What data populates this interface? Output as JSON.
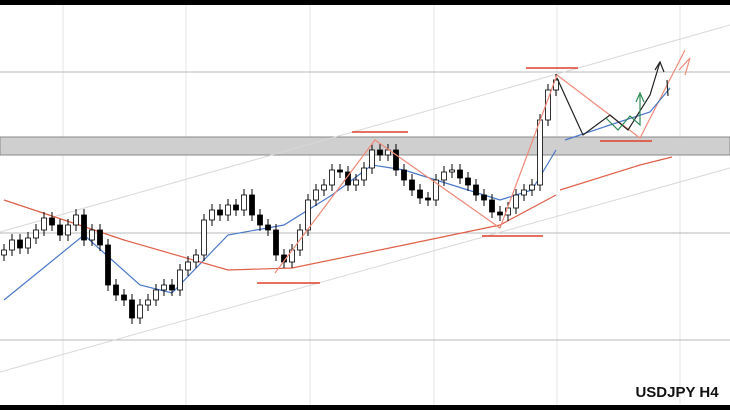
{
  "chart_data": {
    "type": "candlestick",
    "title": "USDJPY H4",
    "ylim": [
      0,
      410
    ],
    "up_color": "#ffffff",
    "down_color": "#000000",
    "open": [
      155,
      160,
      170,
      162,
      172,
      180,
      192,
      185,
      175,
      185,
      195,
      170,
      180,
      165,
      125,
      115,
      110,
      92,
      105,
      110,
      120,
      125,
      120,
      140,
      148,
      155,
      190,
      200,
      195,
      205,
      200,
      215,
      195,
      185,
      180,
      155,
      148,
      160,
      180,
      210,
      220,
      225,
      240,
      238,
      225,
      230,
      242,
      260,
      255,
      260,
      240,
      230,
      220,
      212,
      210,
      230,
      238,
      240,
      232,
      225,
      215,
      210,
      198,
      195,
      202,
      215,
      220,
      225,
      290,
      320
    ],
    "high": [
      166,
      176,
      176,
      178,
      186,
      198,
      198,
      191,
      191,
      201,
      201,
      186,
      186,
      171,
      131,
      121,
      116,
      111,
      116,
      126,
      131,
      131,
      146,
      154,
      161,
      196,
      206,
      206,
      211,
      211,
      221,
      221,
      201,
      191,
      186,
      161,
      166,
      186,
      216,
      226,
      231,
      246,
      246,
      244,
      236,
      248,
      266,
      266,
      266,
      266,
      246,
      236,
      226,
      218,
      236,
      244,
      246,
      246,
      238,
      231,
      221,
      216,
      204,
      208,
      221,
      226,
      231,
      296,
      326,
      336
    ],
    "low": [
      149,
      154,
      156,
      156,
      166,
      174,
      179,
      169,
      169,
      179,
      164,
      164,
      159,
      119,
      109,
      104,
      86,
      86,
      99,
      104,
      114,
      114,
      114,
      134,
      142,
      149,
      184,
      189,
      189,
      194,
      194,
      189,
      179,
      174,
      149,
      142,
      142,
      154,
      174,
      204,
      214,
      219,
      232,
      219,
      219,
      224,
      236,
      249,
      249,
      234,
      224,
      214,
      206,
      204,
      204,
      224,
      232,
      226,
      219,
      209,
      204,
      192,
      189,
      189,
      196,
      209,
      214,
      219,
      284,
      314
    ],
    "close": [
      160,
      170,
      162,
      172,
      180,
      192,
      185,
      175,
      185,
      195,
      170,
      180,
      165,
      125,
      115,
      110,
      92,
      105,
      110,
      120,
      125,
      120,
      140,
      148,
      155,
      190,
      200,
      195,
      205,
      200,
      215,
      195,
      185,
      180,
      155,
      148,
      160,
      180,
      210,
      220,
      225,
      240,
      238,
      225,
      230,
      242,
      260,
      255,
      260,
      240,
      230,
      220,
      212,
      210,
      230,
      238,
      240,
      232,
      225,
      215,
      210,
      198,
      195,
      202,
      215,
      220,
      225,
      290,
      320,
      330
    ],
    "lines": [
      {
        "color": "#4a78c8",
        "x": [
          0,
          10,
          17,
          21,
          28,
          35,
          41,
          46,
          50,
          56,
          62,
          66,
          69
        ],
        "values": [
          110,
          175,
          125,
          117,
          175,
          185,
          215,
          245,
          240,
          225,
          210,
          220,
          260
        ]
      },
      {
        "color": "#e0604a",
        "x": [
          0,
          15,
          28,
          36,
          50,
          62,
          69
        ],
        "values": [
          210,
          170,
          140,
          142,
          165,
          185,
          215
        ]
      }
    ]
  }
}
